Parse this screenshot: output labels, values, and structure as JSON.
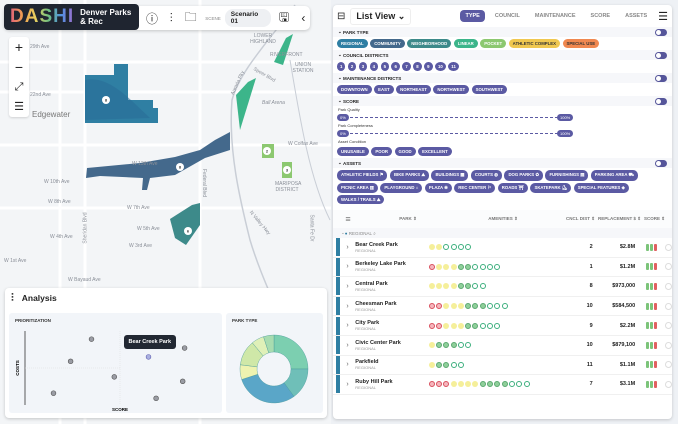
{
  "header": {
    "logo": "DASHI",
    "org": "Denver Parks & Rec",
    "scene_label": "SCENE",
    "scene_value": "Scenario 01"
  },
  "map": {
    "labels": [
      "29th Ave",
      "22nd Ave",
      "Edgewater",
      "W 13th Ave",
      "W 10th Ave",
      "W 8th Ave",
      "W 7th Ave",
      "W 5th Ave",
      "W 4th Ave",
      "W 3rd Ave",
      "W 1st Ave",
      "W Bayaud Ave",
      "W Colfax Ave",
      "Ball Arena",
      "LOWER HIGHLAND",
      "RIVERFRONT",
      "UNION STATION",
      "MARIPOSA DISTRICT",
      "Sheridan Blvd",
      "Federal Blvd",
      "N Valley Hwy",
      "Speer Blvd",
      "Santa Fe Dr",
      "Auraria Pky"
    ],
    "markers": [
      "8",
      "2",
      "3",
      "8",
      "6"
    ],
    "colors": {
      "regional": "#2f7fa3",
      "community": "#44698c",
      "neighborhood": "#3d9a8a",
      "linear": "#3cb58a",
      "pocket": "#8cc870"
    }
  },
  "analysis": {
    "title": "Analysis",
    "prioritization_title": "PRIORITIZATION",
    "park_type_title": "PARK TYPE",
    "tooltip": "Bear Creek Park"
  },
  "chart_data": [
    {
      "type": "scatter",
      "title": "PRIORITIZATION",
      "xlabel": "SCORE",
      "ylabel": "COSTS",
      "xlim": [
        0,
        10
      ],
      "ylim": [
        0,
        10
      ],
      "grid": false,
      "points": [
        {
          "x": 3.5,
          "y": 8.9
        },
        {
          "x": 8.4,
          "y": 7.7
        },
        {
          "x": 6.5,
          "y": 6.5,
          "label": "Bear Creek Park",
          "highlighted": true
        },
        {
          "x": 2.4,
          "y": 5.9
        },
        {
          "x": 4.7,
          "y": 3.8
        },
        {
          "x": 8.3,
          "y": 3.2
        },
        {
          "x": 1.5,
          "y": 1.6
        },
        {
          "x": 6.9,
          "y": 0.9
        }
      ]
    },
    {
      "type": "pie",
      "title": "PARK TYPE",
      "donut": true,
      "values": [
        25,
        15,
        30,
        7,
        12,
        6,
        5
      ],
      "colors": [
        "#7ccfb0",
        "#6fbfb8",
        "#5aa6c8",
        "#eef3b0",
        "#cfe8a8",
        "#dff0b8",
        "#a8dcb0"
      ]
    }
  ],
  "panel": {
    "view": "List View",
    "tabs": [
      "TYPE",
      "COUNCIL",
      "MAINTENANCE",
      "SCORE",
      "ASSETS"
    ],
    "park_type": {
      "title": "PARK TYPE",
      "chips": [
        {
          "l": "REGIONAL",
          "c": "#2f7fa3"
        },
        {
          "l": "COMMUNITY",
          "c": "#44698c"
        },
        {
          "l": "NEIGHBORHOOD",
          "c": "#3d8a8a"
        },
        {
          "l": "LINEAR",
          "c": "#3cb58a"
        },
        {
          "l": "POCKET",
          "c": "#8cc870"
        },
        {
          "l": "ATHLETIC COMPLEX",
          "c": "#f0c850"
        },
        {
          "l": "SPECIAL USE",
          "c": "#f08850"
        }
      ]
    },
    "council": {
      "title": "COUNCIL DISTRICTS",
      "chips": [
        "1",
        "2",
        "3",
        "4",
        "5",
        "6",
        "7",
        "8",
        "9",
        "10",
        "11"
      ]
    },
    "maintenance": {
      "title": "MAINTENANCE DISTRICTS",
      "chips": [
        "DOWNTOWN",
        "EAST",
        "NORTHEAST",
        "NORTHWEST",
        "SOUTHWEST"
      ]
    },
    "score": {
      "title": "SCORE",
      "park_quality": "Park Quality",
      "park_completeness": "Park Completeness",
      "min": "0%",
      "max": "100%",
      "asset_condition": "Asset Condition",
      "chips": [
        "UNUSABLE",
        "POOR",
        "GOOD",
        "EXCELLENT"
      ]
    },
    "assets": {
      "title": "ASSETS",
      "chips": [
        "ATHLETIC FIELDS ⚑",
        "BIKE PARKS ⛰",
        "BUILDINGS ▦",
        "COURTS ◍",
        "DOG PARKS ✿",
        "FURNISHINGS ▤",
        "PARKING AREA ⛟",
        "PICNIC AREA ▥",
        "PLAYGROUND ⌂",
        "PLAZA ❀",
        "REC CENTER ⚐",
        "ROADS ⛩",
        "SKATEPARK ⛸",
        "SPECIAL FEATURES ◈",
        "WALKS / TRAILS ⛰"
      ]
    },
    "table": {
      "columns": [
        "PARK ⇕",
        "AMENITIES ⇕",
        "CNCL DIST ⇕",
        "REPLACEMENT $ ⇕",
        "SCORE ⇕"
      ],
      "group": "REGIONAL",
      "rows": [
        {
          "name": "Bear Creek Park",
          "type": "REGIONAL",
          "amenities": "yycccc",
          "dist": "2",
          "rep": "$2.8M"
        },
        {
          "name": "Berkeley Lake Park",
          "type": "REGIONAL",
          "amenities": "ryyyggcccc",
          "dist": "1",
          "rep": "$1.2M"
        },
        {
          "name": "Central Park",
          "type": "REGIONAL",
          "amenities": "yyyyggcc",
          "dist": "8",
          "rep": "$973,000"
        },
        {
          "name": "Cheesman Park",
          "type": "REGIONAL",
          "amenities": "rryyygggccc",
          "dist": "10",
          "rep": "$584,500"
        },
        {
          "name": "City Park",
          "type": "REGIONAL",
          "amenities": "rryyyggccc",
          "dist": "9",
          "rep": "$2.2M"
        },
        {
          "name": "Civic Center Park",
          "type": "REGIONAL",
          "amenities": "ygggcc",
          "dist": "10",
          "rep": "$879,100"
        },
        {
          "name": "Parkfield",
          "type": "REGIONAL",
          "amenities": "yggcc",
          "dist": "11",
          "rep": "$1.1M"
        },
        {
          "name": "Ruby Hill Park",
          "type": "REGIONAL",
          "amenities": "rrryyyyggggccc",
          "dist": "7",
          "rep": "$3.1M"
        }
      ]
    }
  }
}
